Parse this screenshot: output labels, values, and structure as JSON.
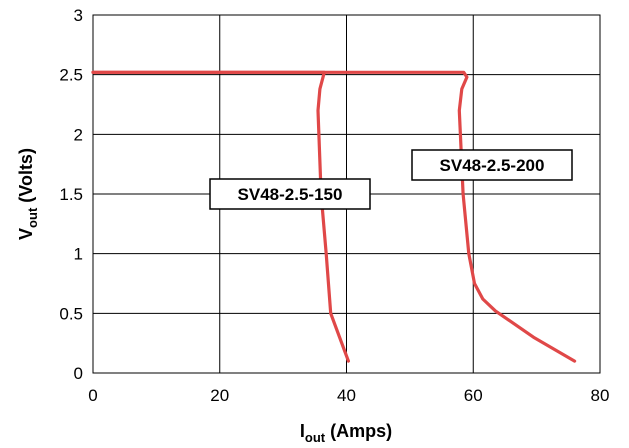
{
  "chart_data": {
    "type": "line",
    "title": "",
    "xlabel": {
      "main": "I",
      "sub": "out",
      "rest": " (Amps)"
    },
    "ylabel": {
      "main": "V",
      "sub": "out",
      "rest": " (Volts)"
    },
    "xlim": [
      0,
      80
    ],
    "ylim": [
      0,
      3
    ],
    "xticks": [
      0,
      20,
      40,
      60,
      80
    ],
    "yticks": [
      0,
      0.5,
      1,
      1.5,
      2,
      2.5,
      3
    ],
    "xtick_labels": [
      "0",
      "20",
      "40",
      "60",
      "80"
    ],
    "ytick_labels": [
      "0",
      "0.5",
      "1",
      "1.5",
      "2",
      "2.5",
      "3"
    ],
    "grid": true,
    "line_color": "#e04848",
    "series": [
      {
        "name": "SV48-2.5-150",
        "x": [
          0,
          36.5,
          35.8,
          35.5,
          36.0,
          36.8,
          37.5,
          40.3
        ],
        "y": [
          2.52,
          2.52,
          2.38,
          2.2,
          1.5,
          1.0,
          0.5,
          0.1
        ]
      },
      {
        "name": "SV48-2.5-200",
        "x": [
          0,
          58.5,
          59.0,
          58.2,
          57.8,
          58.4,
          59.3,
          60.2,
          61.5,
          63.5,
          69.5,
          76.0
        ],
        "y": [
          2.52,
          2.52,
          2.48,
          2.38,
          2.2,
          1.5,
          1.0,
          0.75,
          0.62,
          0.52,
          0.3,
          0.1
        ]
      }
    ]
  }
}
